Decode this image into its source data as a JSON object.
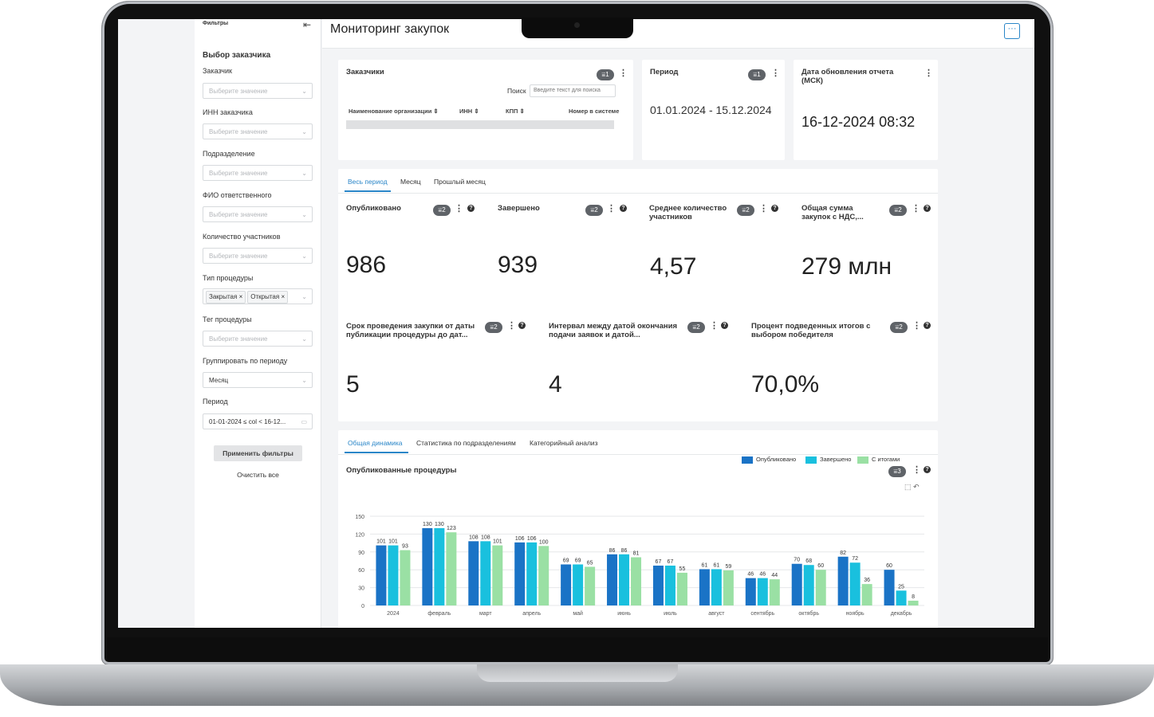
{
  "sidebar": {
    "title": "Фильтры",
    "section": "Выбор заказчика",
    "fields": [
      {
        "label": "Заказчик",
        "placeholder": "Выберите значение"
      },
      {
        "label": "ИНН заказчика",
        "placeholder": "Выберите значение"
      },
      {
        "label": "Подразделение",
        "placeholder": "Выберите значение"
      },
      {
        "label": "ФИО ответственного",
        "placeholder": "Выберите значение"
      },
      {
        "label": "Количество участников",
        "placeholder": "Выберите значение"
      },
      {
        "label": "Тип процедуры",
        "tags": [
          "Закрытая",
          "Открытая"
        ]
      },
      {
        "label": "Тег процедуры",
        "placeholder": "Выберите значение"
      },
      {
        "label": "Группировать по периоду",
        "value": "Месяц"
      },
      {
        "label": "Период",
        "value": "01-01-2024 ≤ col < 16-12..."
      }
    ],
    "apply_label": "Применить фильтры",
    "clear_label": "Очистить все"
  },
  "header": {
    "title": "Мониторинг закупок",
    "more": "···"
  },
  "customers_card": {
    "title": "Заказчики",
    "badge": "1",
    "search_label": "Поиск",
    "search_placeholder": "Введите текст для поиска",
    "columns": [
      "Наименование организации",
      "ИНН",
      "КПП",
      "Номер в системе"
    ]
  },
  "period_card": {
    "title": "Период",
    "badge": "1",
    "value": "01.01.2024 - 15.12.2024"
  },
  "update_card": {
    "title_line1": "Дата обновления отчета",
    "title_line2": "(МСК)",
    "value": "16-12-2024 08:32"
  },
  "period_tabs": [
    "Весь период",
    "Месяц",
    "Прошлый месяц"
  ],
  "kpis_row1": [
    {
      "title_l1": "Опубликовано",
      "title_l2": "",
      "badge": "2",
      "value": "986"
    },
    {
      "title_l1": "Завершено",
      "title_l2": "",
      "badge": "2",
      "value": "939"
    },
    {
      "title_l1": "Среднее количество",
      "title_l2": "участников",
      "badge": "2",
      "value": "4,57"
    },
    {
      "title_l1": "Общая сумма",
      "title_l2": "закупок с НДС,...",
      "badge": "2",
      "value": "279 млн"
    }
  ],
  "kpis_row2": [
    {
      "title_l1": "Срок проведения закупки от даты",
      "title_l2": "публикации процедуры до дат...",
      "badge": "2",
      "value": "5"
    },
    {
      "title_l1": "Интервал между датой окончания",
      "title_l2": "подачи заявок и датой...",
      "badge": "2",
      "value": "4"
    },
    {
      "title_l1": "Процент подведенных итогов с",
      "title_l2": "выбором победителя",
      "badge": "2",
      "value": "70,0%"
    }
  ],
  "analysis_tabs": [
    "Общая динамика",
    "Статистика по подразделениям",
    "Категорийный анализ"
  ],
  "chart_card": {
    "title": "Опубликованные процедуры",
    "badge": "3"
  },
  "chart_data": {
    "type": "bar",
    "categories": [
      "2024",
      "февраль",
      "март",
      "апрель",
      "май",
      "июнь",
      "июль",
      "август",
      "сентябрь",
      "октябрь",
      "ноябрь",
      "декабрь"
    ],
    "series": [
      {
        "name": "Опубликовано",
        "color": "#1a73c6",
        "values": [
          101,
          130,
          108,
          106,
          69,
          86,
          67,
          61,
          46,
          70,
          82,
          60
        ]
      },
      {
        "name": "Завершено",
        "color": "#19c0de",
        "values": [
          101,
          130,
          108,
          106,
          69,
          86,
          67,
          61,
          46,
          68,
          72,
          25
        ]
      },
      {
        "name": "С итогами",
        "color": "#9ae0a4",
        "values": [
          93,
          123,
          101,
          100,
          65,
          81,
          55,
          59,
          44,
          60,
          36,
          8
        ]
      }
    ],
    "yticks": [
      0,
      30,
      60,
      90,
      120,
      150
    ],
    "ylim": [
      0,
      150
    ],
    "grid": true,
    "legend": "top-right",
    "data_labels": true
  }
}
